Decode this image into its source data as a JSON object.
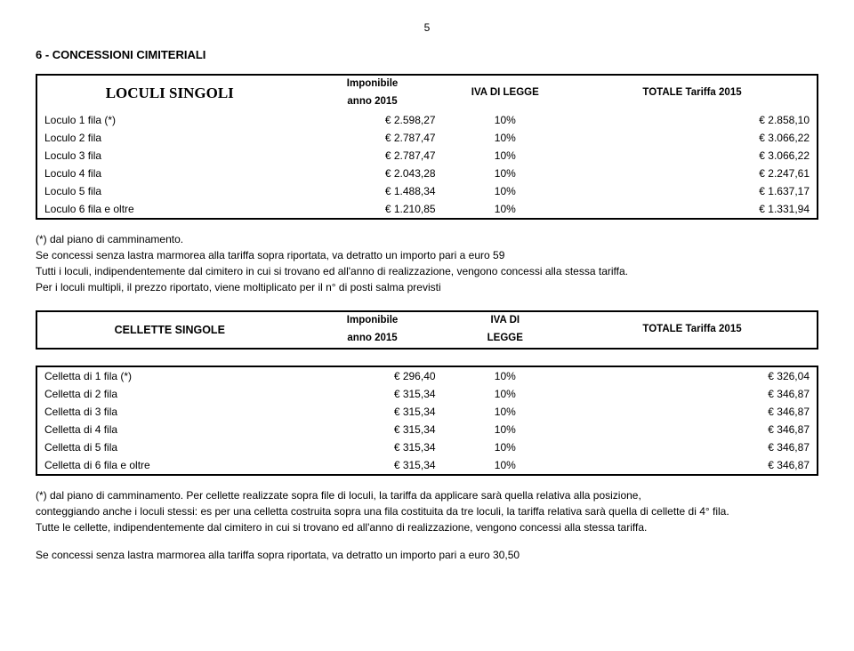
{
  "page_number": "5",
  "section_heading": "6 - CONCESSIONI CIMITERIALI",
  "table1": {
    "title": "LOCULI SINGOLI",
    "col_imponibile_1": "Imponibile",
    "col_imponibile_2": "anno 2015",
    "col_iva": "IVA DI LEGGE",
    "col_totale": "TOTALE Tariffa 2015",
    "rows": [
      {
        "label": "Loculo 1 fila (*)",
        "val": "€    2.598,27",
        "pct": "10%",
        "tot": "€ 2.858,10"
      },
      {
        "label": "Loculo 2 fila",
        "val": "€    2.787,47",
        "pct": "10%",
        "tot": "€ 3.066,22"
      },
      {
        "label": "Loculo 3 fila",
        "val": "€    2.787,47",
        "pct": "10%",
        "tot": "€ 3.066,22"
      },
      {
        "label": "Loculo 4 fila",
        "val": "€    2.043,28",
        "pct": "10%",
        "tot": "€ 2.247,61"
      },
      {
        "label": "Loculo 5 fila",
        "val": "€    1.488,34",
        "pct": "10%",
        "tot": "€ 1.637,17"
      },
      {
        "label": "Loculo 6 fila e oltre",
        "val": "€    1.210,85",
        "pct": "10%",
        "tot": "€ 1.331,94"
      }
    ]
  },
  "notes1": {
    "l1": "(*) dal piano di camminamento.",
    "l2": "Se concessi senza lastra marmorea alla tariffa sopra riportata, va detratto un importo pari a euro 59",
    "l3": "Tutti i loculi, indipendentemente dal cimitero in cui si trovano ed all'anno di realizzazione, vengono concessi alla stessa tariffa.",
    "l4": "Per i loculi multipli, il prezzo riportato, viene moltiplicato per il n° di posti salma previsti"
  },
  "table2": {
    "title": "CELLETTE SINGOLE",
    "col_imponibile_1": "Imponibile",
    "col_imponibile_2": "anno 2015",
    "col_iva_1": "IVA DI",
    "col_iva_2": "LEGGE",
    "col_totale": "TOTALE Tariffa 2015",
    "rows": [
      {
        "label": "Celletta di  1 fila (*)",
        "val": "€       296,40",
        "pct": "10%",
        "tot": "€                        326,04"
      },
      {
        "label": "Celletta di  2 fila",
        "val": "€       315,34",
        "pct": "10%",
        "tot": "€                        346,87"
      },
      {
        "label": "Celletta di  3 fila",
        "val": "€       315,34",
        "pct": "10%",
        "tot": "€                        346,87"
      },
      {
        "label": "Celletta di  4 fila",
        "val": "€       315,34",
        "pct": "10%",
        "tot": "€                        346,87"
      },
      {
        "label": "Celletta di  5 fila",
        "val": "€       315,34",
        "pct": "10%",
        "tot": "€                        346,87"
      },
      {
        "label": "Celletta di  6 fila e oltre",
        "val": "€       315,34",
        "pct": "10%",
        "tot": "€                        346,87"
      }
    ]
  },
  "notes2": {
    "l1": "(*) dal piano di camminamento. Per cellette realizzate sopra file di loculi, la tariffa da applicare sarà quella  relativa alla posizione,",
    "l2": " conteggiando anche i loculi stessi: es per una celletta costruita sopra una fila costituita da tre loculi, la tariffa relativa sarà quella di cellette di 4° fila.",
    "l3": "Tutte le cellette, indipendentemente dal cimitero in cui si trovano ed all'anno di realizzazione, vengono concessi alla stessa tariffa.",
    "l4": "Se concessi senza lastra marmorea alla tariffa sopra riportata, va detratto un importo pari a euro 30,50"
  }
}
